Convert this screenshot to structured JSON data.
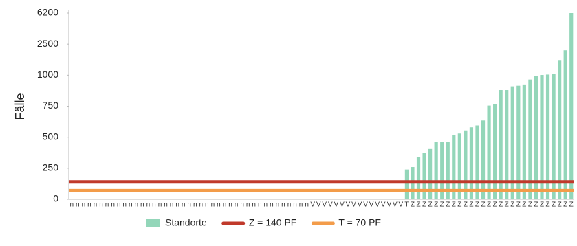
{
  "chart_data": {
    "type": "bar",
    "y_label": "Fälle",
    "yscale": "piecewise-linear",
    "ylim": [
      0,
      6200
    ],
    "yticks": [
      0,
      250,
      500,
      750,
      1000,
      2500,
      6200
    ],
    "categories": [
      "n",
      "n",
      "n",
      "n",
      "n",
      "n",
      "n",
      "n",
      "n",
      "n",
      "n",
      "n",
      "n",
      "n",
      "n",
      "n",
      "n",
      "n",
      "n",
      "n",
      "n",
      "n",
      "n",
      "n",
      "n",
      "n",
      "n",
      "n",
      "n",
      "n",
      "n",
      "n",
      "n",
      "n",
      "n",
      "n",
      "n",
      "n",
      "n",
      "n",
      "n",
      "V",
      "V",
      "V",
      "V",
      "V",
      "V",
      "V",
      "V",
      "V",
      "V",
      "V",
      "V",
      "V",
      "V",
      "V",
      "V",
      "T",
      "Z",
      "Z",
      "Z",
      "Z",
      "Z",
      "Z",
      "Z",
      "Z",
      "Z",
      "Z",
      "Z",
      "Z",
      "Z",
      "Z",
      "Z",
      "Z",
      "Z",
      "Z",
      "Z",
      "Z",
      "Z",
      "Z",
      "Z",
      "Z",
      "Z",
      "Z",
      "Z",
      "Z"
    ],
    "series": [
      {
        "name": "Standorte",
        "color": "#93d6b9",
        "values": [
          null,
          null,
          null,
          null,
          null,
          null,
          null,
          null,
          null,
          null,
          null,
          null,
          null,
          null,
          null,
          null,
          null,
          null,
          null,
          null,
          null,
          null,
          null,
          null,
          null,
          null,
          null,
          null,
          null,
          null,
          null,
          null,
          null,
          null,
          null,
          null,
          null,
          null,
          null,
          null,
          null,
          null,
          null,
          null,
          null,
          null,
          null,
          null,
          null,
          null,
          null,
          null,
          null,
          null,
          null,
          null,
          null,
          240,
          260,
          340,
          375,
          405,
          460,
          460,
          460,
          515,
          530,
          555,
          580,
          595,
          635,
          755,
          765,
          880,
          880,
          910,
          915,
          925,
          965,
          995,
          1010,
          1030,
          1065,
          1700,
          2200,
          6200
        ]
      }
    ],
    "reference_lines": [
      {
        "name": "Z = 140 PF",
        "color": "#c0392b",
        "value": 140
      },
      {
        "name": "T = 70 PF",
        "color": "#f39c4a",
        "value": 70
      }
    ]
  }
}
